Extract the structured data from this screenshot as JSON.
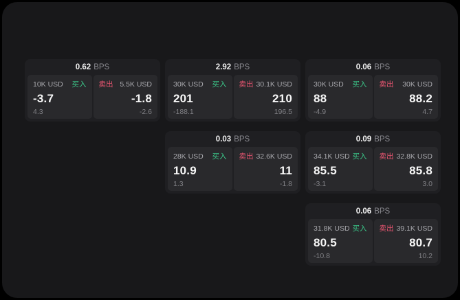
{
  "labels": {
    "bps_unit": "BPS",
    "buy": "买入",
    "sell": "卖出"
  },
  "colors": {
    "buy": "#3bc98a",
    "sell": "#e75570",
    "surface": "#18181a",
    "card": "#1f1f22",
    "panel": "#29292c"
  },
  "cards": [
    {
      "bps": "0.62",
      "buy": {
        "amount": "10K USD",
        "price": "-3.7",
        "delta": "4.3"
      },
      "sell": {
        "amount": "5.5K USD",
        "price": "-1.8",
        "delta": "-2.6"
      }
    },
    {
      "bps": "2.92",
      "buy": {
        "amount": "30K USD",
        "price": "201",
        "delta": "-188.1"
      },
      "sell": {
        "amount": "30.1K USD",
        "price": "210",
        "delta": "196.5"
      }
    },
    {
      "bps": "0.06",
      "buy": {
        "amount": "30K USD",
        "price": "88",
        "delta": "-4.9"
      },
      "sell": {
        "amount": "30K USD",
        "price": "88.2",
        "delta": "4.7"
      }
    },
    {
      "bps": "0.03",
      "buy": {
        "amount": "28K USD",
        "price": "10.9",
        "delta": "1.3"
      },
      "sell": {
        "amount": "32.6K USD",
        "price": "11",
        "delta": "-1.8"
      }
    },
    {
      "bps": "0.09",
      "buy": {
        "amount": "34.1K USD",
        "price": "85.5",
        "delta": "-3.1"
      },
      "sell": {
        "amount": "32.8K USD",
        "price": "85.8",
        "delta": "3.0"
      }
    },
    {
      "bps": "0.06",
      "buy": {
        "amount": "31.8K USD",
        "price": "80.5",
        "delta": "-10.8"
      },
      "sell": {
        "amount": "39.1K USD",
        "price": "80.7",
        "delta": "10.2"
      }
    }
  ]
}
